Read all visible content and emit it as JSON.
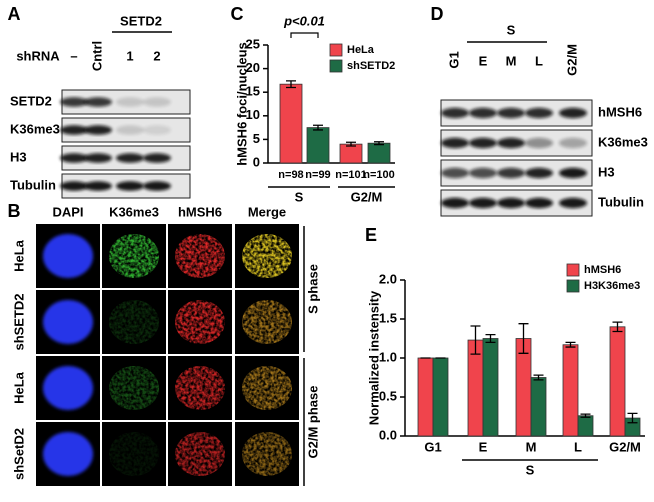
{
  "panel_labels": [
    "A",
    "B",
    "C",
    "D",
    "E"
  ],
  "blot_a": {
    "shrna_label": "shRNA",
    "group_label": "SETD2",
    "lanes": [
      "–",
      "Cntrl",
      "1",
      "2"
    ],
    "rows": [
      "SETD2",
      "K36me3",
      "H3",
      "Tubulin"
    ]
  },
  "microscopy": {
    "columns": [
      "DAPI",
      "K36me3",
      "hMSH6",
      "Merge"
    ],
    "rows": [
      "HeLa",
      "shSETD2",
      "HeLa",
      "shSetD2"
    ],
    "phases": [
      "S phase",
      "G2/M phase"
    ]
  },
  "blot_d": {
    "group_label": "S",
    "lanes": [
      "G1",
      "E",
      "M",
      "L",
      "G2/M"
    ],
    "rows": [
      "hMSH6",
      "K36me3",
      "H3",
      "Tubulin"
    ]
  },
  "chart_data": [
    {
      "type": "bar",
      "ylabel": "hMSH6 foci/nucleus",
      "annotation": "p<0.01",
      "categories": [
        "n=98",
        "n=99",
        "n=101",
        "n=100"
      ],
      "group_labels": [
        "S",
        "G2/M"
      ],
      "series": [
        {
          "name": "HeLa",
          "color": "#f0444c",
          "values": [
            16.7,
            null,
            4.0,
            null
          ],
          "errors": [
            0.7,
            null,
            0.4,
            null
          ]
        },
        {
          "name": "shSETD2",
          "color": "#1e6b45",
          "values": [
            null,
            7.5,
            null,
            4.2
          ],
          "errors": [
            null,
            0.5,
            null,
            0.3
          ]
        }
      ],
      "ylim": [
        0,
        25
      ],
      "yticks": [
        0,
        5,
        10,
        15,
        20,
        25
      ],
      "legend": "upper right"
    },
    {
      "type": "bar",
      "ylabel": "Normalized instensity",
      "categories": [
        "G1",
        "E",
        "M",
        "L",
        "G2/M"
      ],
      "group_labels": [
        "S"
      ],
      "series": [
        {
          "name": "hMSH6",
          "color": "#f0444c",
          "values": [
            1.0,
            1.23,
            1.25,
            1.17,
            1.4
          ],
          "errors": [
            0,
            0.18,
            0.19,
            0.03,
            0.06
          ]
        },
        {
          "name": "H3K36me3",
          "color": "#1e6b45",
          "values": [
            1.0,
            1.25,
            0.75,
            0.26,
            0.23
          ],
          "errors": [
            0,
            0.05,
            0.03,
            0.02,
            0.06
          ]
        }
      ],
      "ylim": [
        0,
        2.0
      ],
      "yticks": [
        {
          "value": 0,
          "label": "0.0"
        },
        {
          "value": 0.5,
          "label": "0.5"
        },
        {
          "value": 1.0,
          "label": "1.0"
        },
        {
          "value": 1.5,
          "label": "1.5"
        },
        {
          "value": 2.0,
          "label": "2.0"
        }
      ],
      "legend": "upper right"
    }
  ]
}
